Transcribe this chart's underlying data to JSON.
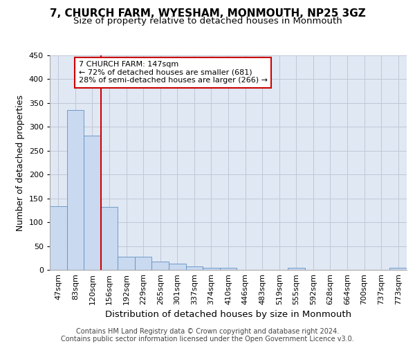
{
  "title": "7, CHURCH FARM, WYESHAM, MONMOUTH, NP25 3GZ",
  "subtitle": "Size of property relative to detached houses in Monmouth",
  "xlabel": "Distribution of detached houses by size in Monmouth",
  "ylabel": "Number of detached properties",
  "categories": [
    "47sqm",
    "83sqm",
    "120sqm",
    "156sqm",
    "192sqm",
    "229sqm",
    "265sqm",
    "301sqm",
    "337sqm",
    "374sqm",
    "410sqm",
    "446sqm",
    "483sqm",
    "519sqm",
    "555sqm",
    "592sqm",
    "628sqm",
    "664sqm",
    "700sqm",
    "737sqm",
    "773sqm"
  ],
  "values": [
    134,
    335,
    282,
    132,
    27,
    27,
    18,
    13,
    7,
    5,
    4,
    0,
    0,
    0,
    4,
    0,
    0,
    0,
    0,
    0,
    4
  ],
  "bar_color": "#c9d9f0",
  "bar_edge_color": "#6090c0",
  "grid_color": "#c0c8d8",
  "bg_color": "#e0e8f4",
  "property_line_color": "#cc0000",
  "annotation_text": "7 CHURCH FARM: 147sqm\n← 72% of detached houses are smaller (681)\n28% of semi-detached houses are larger (266) →",
  "annotation_box_color": "#cc0000",
  "ylim": [
    0,
    450
  ],
  "yticks": [
    0,
    50,
    100,
    150,
    200,
    250,
    300,
    350,
    400,
    450
  ],
  "footer_line1": "Contains HM Land Registry data © Crown copyright and database right 2024.",
  "footer_line2": "Contains public sector information licensed under the Open Government Licence v3.0.",
  "title_fontsize": 11,
  "subtitle_fontsize": 9.5,
  "xlabel_fontsize": 9.5,
  "ylabel_fontsize": 9,
  "tick_fontsize": 8,
  "footer_fontsize": 7
}
